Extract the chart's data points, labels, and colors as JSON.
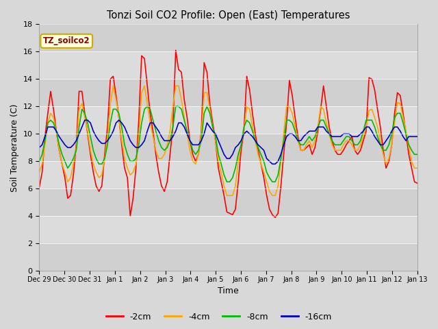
{
  "title": "Tonzi Soil CO2 Profile: Open (East) Temperatures",
  "xlabel": "Time",
  "ylabel": "Soil Temperature (C)",
  "ylim": [
    0,
    18
  ],
  "legend_label": "TZ_soilco2",
  "line_labels": [
    "-2cm",
    "-4cm",
    "-8cm",
    "-16cm"
  ],
  "line_colors": [
    "#ff0000",
    "#ffa500",
    "#00bb00",
    "#0000cc"
  ],
  "band_colors": [
    "#d8d8d8",
    "#e8e8e8"
  ],
  "fig_facecolor": "#d8d8d8",
  "start_date": "2003-12-29",
  "tick_labels": [
    "Dec 29",
    "Dec 30",
    "Dec 31",
    "Jan 1",
    "Jan 2",
    "Jan 3",
    "Jan 4",
    "Jan 5",
    "Jan 6",
    "Jan 7",
    "Jan 8",
    "Jan 9",
    "Jan 10",
    "Jan 11",
    "Jan 12",
    "Jan 13"
  ],
  "depths": {
    "-2cm": [
      6.1,
      7.2,
      9.8,
      11.5,
      13.1,
      11.8,
      10.2,
      8.8,
      7.8,
      6.8,
      5.3,
      5.5,
      7.0,
      9.2,
      13.1,
      13.1,
      11.5,
      10.0,
      8.5,
      7.2,
      6.2,
      5.8,
      6.2,
      8.5,
      10.5,
      14.0,
      14.2,
      12.8,
      11.2,
      9.2,
      7.5,
      6.8,
      4.0,
      5.3,
      7.5,
      11.0,
      15.7,
      15.5,
      13.5,
      11.5,
      10.2,
      8.5,
      7.2,
      6.2,
      5.8,
      6.5,
      8.5,
      10.5,
      16.1,
      14.7,
      14.5,
      12.5,
      11.2,
      9.5,
      8.5,
      8.0,
      8.5,
      10.2,
      15.2,
      14.5,
      12.2,
      10.8,
      9.5,
      7.5,
      6.5,
      5.5,
      4.3,
      4.2,
      4.1,
      4.5,
      6.5,
      8.8,
      10.2,
      14.2,
      13.2,
      11.5,
      10.0,
      8.8,
      7.8,
      6.8,
      5.5,
      4.5,
      4.1,
      3.9,
      4.2,
      6.2,
      8.5,
      10.8,
      13.9,
      12.8,
      11.2,
      9.8,
      8.8,
      8.8,
      9.0,
      9.2,
      8.5,
      9.0,
      10.2,
      11.8,
      13.5,
      12.0,
      10.5,
      9.5,
      8.8,
      8.5,
      8.5,
      8.8,
      9.2,
      9.5,
      9.8,
      8.8,
      8.5,
      8.8,
      9.5,
      10.2,
      14.1,
      14.0,
      13.2,
      11.8,
      10.5,
      8.8,
      7.5,
      8.0,
      9.2,
      11.5,
      13.0,
      12.8,
      11.5,
      10.0,
      8.5,
      7.5,
      6.5,
      6.4
    ],
    "-4cm": [
      7.2,
      7.8,
      9.2,
      10.8,
      11.5,
      11.2,
      10.2,
      8.8,
      7.8,
      7.2,
      6.5,
      6.8,
      7.8,
      9.0,
      11.8,
      12.2,
      11.2,
      10.2,
      8.8,
      7.8,
      7.2,
      6.8,
      7.0,
      8.2,
      9.8,
      12.2,
      13.5,
      12.5,
      11.2,
      9.5,
      8.2,
      7.5,
      7.0,
      7.2,
      7.8,
      9.8,
      13.0,
      13.5,
      12.2,
      10.8,
      9.8,
      8.8,
      8.2,
      8.2,
      8.5,
      9.2,
      10.2,
      12.0,
      13.5,
      13.5,
      12.5,
      11.2,
      10.0,
      8.8,
      8.0,
      7.8,
      8.5,
      10.0,
      13.0,
      13.0,
      11.8,
      10.5,
      9.5,
      8.0,
      7.2,
      6.2,
      5.5,
      5.5,
      5.5,
      6.2,
      8.0,
      9.2,
      10.2,
      12.0,
      11.8,
      10.5,
      9.5,
      8.5,
      7.8,
      7.2,
      6.5,
      5.8,
      5.5,
      5.5,
      6.2,
      8.0,
      10.0,
      12.0,
      12.0,
      11.5,
      10.5,
      9.5,
      8.8,
      8.8,
      9.2,
      9.5,
      9.0,
      9.5,
      10.5,
      12.0,
      11.8,
      10.8,
      10.0,
      9.2,
      8.8,
      8.8,
      8.8,
      9.2,
      9.5,
      9.5,
      9.2,
      8.8,
      8.8,
      9.2,
      9.8,
      10.5,
      11.7,
      11.8,
      11.2,
      10.5,
      9.5,
      8.5,
      7.8,
      8.2,
      9.2,
      10.8,
      12.3,
      12.2,
      11.2,
      10.2,
      9.0,
      8.0,
      7.5,
      7.5
    ],
    "-8cm": [
      8.0,
      8.5,
      9.5,
      10.8,
      11.0,
      10.8,
      10.2,
      9.2,
      8.5,
      8.0,
      7.5,
      7.8,
      8.2,
      8.8,
      10.5,
      11.8,
      11.5,
      10.8,
      9.8,
      8.8,
      8.2,
      7.8,
      7.8,
      8.2,
      9.2,
      10.8,
      11.8,
      11.8,
      11.5,
      10.5,
      9.2,
      8.5,
      8.0,
      8.0,
      8.2,
      9.2,
      10.8,
      11.8,
      12.0,
      11.8,
      11.0,
      10.2,
      9.5,
      9.0,
      8.8,
      9.0,
      9.5,
      10.5,
      12.0,
      12.0,
      11.8,
      11.0,
      10.2,
      9.5,
      8.8,
      8.5,
      8.8,
      9.5,
      11.5,
      12.0,
      11.5,
      10.5,
      9.8,
      8.5,
      7.8,
      7.0,
      6.5,
      6.5,
      6.8,
      7.5,
      8.5,
      9.2,
      10.5,
      11.0,
      10.8,
      10.2,
      9.5,
      9.0,
      8.5,
      8.0,
      7.2,
      6.8,
      6.5,
      6.5,
      7.0,
      8.2,
      9.5,
      11.0,
      11.0,
      10.8,
      10.2,
      9.5,
      9.2,
      9.2,
      9.5,
      9.8,
      9.5,
      9.8,
      10.5,
      11.0,
      11.0,
      10.5,
      10.0,
      9.5,
      9.2,
      9.2,
      9.2,
      9.5,
      9.8,
      9.8,
      9.5,
      9.2,
      9.2,
      9.5,
      10.2,
      11.0,
      11.0,
      11.0,
      10.5,
      9.8,
      9.2,
      8.8,
      8.8,
      9.2,
      10.0,
      11.2,
      11.5,
      11.5,
      10.8,
      10.0,
      9.2,
      8.8,
      8.5,
      8.5
    ],
    "-16cm": [
      9.0,
      9.2,
      9.8,
      10.5,
      10.5,
      10.5,
      10.2,
      9.8,
      9.5,
      9.2,
      9.0,
      9.0,
      9.2,
      9.5,
      10.0,
      10.5,
      11.0,
      11.0,
      10.8,
      10.2,
      9.8,
      9.5,
      9.3,
      9.3,
      9.5,
      9.8,
      10.2,
      10.8,
      11.0,
      10.8,
      10.5,
      10.0,
      9.5,
      9.2,
      9.0,
      9.0,
      9.2,
      9.5,
      10.2,
      10.8,
      10.8,
      10.5,
      10.2,
      9.8,
      9.5,
      9.5,
      9.5,
      9.8,
      10.2,
      10.8,
      10.8,
      10.5,
      10.0,
      9.5,
      9.2,
      9.2,
      9.2,
      9.5,
      10.0,
      10.8,
      10.5,
      10.2,
      10.0,
      9.5,
      9.0,
      8.5,
      8.2,
      8.2,
      8.5,
      9.0,
      9.2,
      9.5,
      10.0,
      10.2,
      10.0,
      9.8,
      9.5,
      9.2,
      9.0,
      8.8,
      8.2,
      8.0,
      7.8,
      7.8,
      8.0,
      8.5,
      9.2,
      9.8,
      10.0,
      10.0,
      9.8,
      9.5,
      9.5,
      9.8,
      10.0,
      10.2,
      10.2,
      10.2,
      10.5,
      10.5,
      10.5,
      10.2,
      10.0,
      9.8,
      9.8,
      9.8,
      9.8,
      10.0,
      10.0,
      10.0,
      9.8,
      9.8,
      9.8,
      10.0,
      10.2,
      10.5,
      10.5,
      10.2,
      9.8,
      9.5,
      9.2,
      9.2,
      9.5,
      9.8,
      10.2,
      10.5,
      10.5,
      10.2,
      9.8,
      9.5,
      9.8,
      9.8,
      9.8,
      9.8
    ]
  }
}
